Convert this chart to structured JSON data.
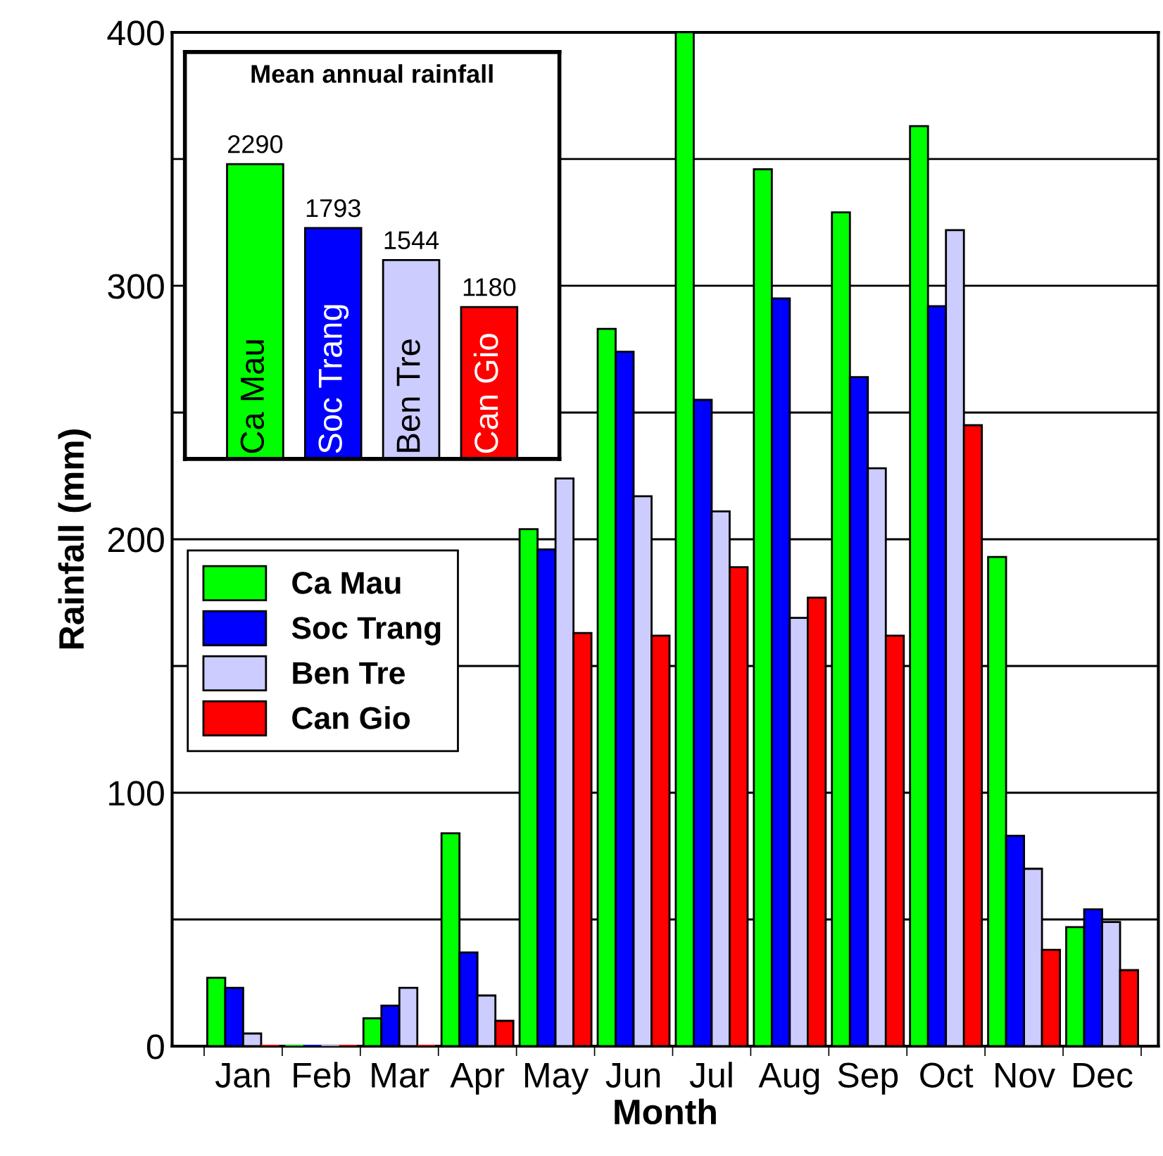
{
  "chart_data": [
    {
      "type": "bar",
      "xlabel": "Month",
      "ylabel": "Rainfall (mm)",
      "categories": [
        "Jan",
        "Feb",
        "Mar",
        "Apr",
        "May",
        "Jun",
        "Jul",
        "Aug",
        "Sep",
        "Oct",
        "Nov",
        "Dec"
      ],
      "series": [
        {
          "name": "Ca Mau",
          "color": "#00ff00",
          "values": [
            27,
            0,
            11,
            84,
            204,
            283,
            400,
            346,
            329,
            363,
            193,
            47
          ]
        },
        {
          "name": "Soc Trang",
          "color": "#0000ff",
          "values": [
            23,
            0,
            16,
            37,
            196,
            274,
            255,
            295,
            264,
            292,
            83,
            54
          ]
        },
        {
          "name": "Ben Tre",
          "color": "#ccccff",
          "values": [
            5,
            0,
            23,
            20,
            224,
            217,
            211,
            169,
            228,
            322,
            70,
            49
          ]
        },
        {
          "name": "Can Gio",
          "color": "#ff0000",
          "values": [
            0,
            0,
            0,
            10,
            163,
            162,
            189,
            177,
            162,
            245,
            38,
            30
          ]
        }
      ],
      "ylim": [
        0,
        400
      ],
      "yticks": [
        0,
        {
          "value": 50,
          "label": null
        },
        100,
        {
          "value": 150,
          "label": null
        },
        200,
        {
          "value": 250,
          "label": null
        },
        300,
        {
          "value": 350,
          "label": null
        },
        400
      ],
      "grid": "y",
      "legend": "left"
    },
    {
      "type": "bar",
      "title": "Mean annual rainfall",
      "categories": [
        "Ca Mau",
        "Soc Trang",
        "Ben Tre",
        "Can Gio"
      ],
      "values": [
        2290,
        1793,
        1544,
        1180
      ],
      "colors": [
        "#00ff00",
        "#0000ff",
        "#ccccff",
        "#ff0000"
      ],
      "data_labels": true
    }
  ]
}
